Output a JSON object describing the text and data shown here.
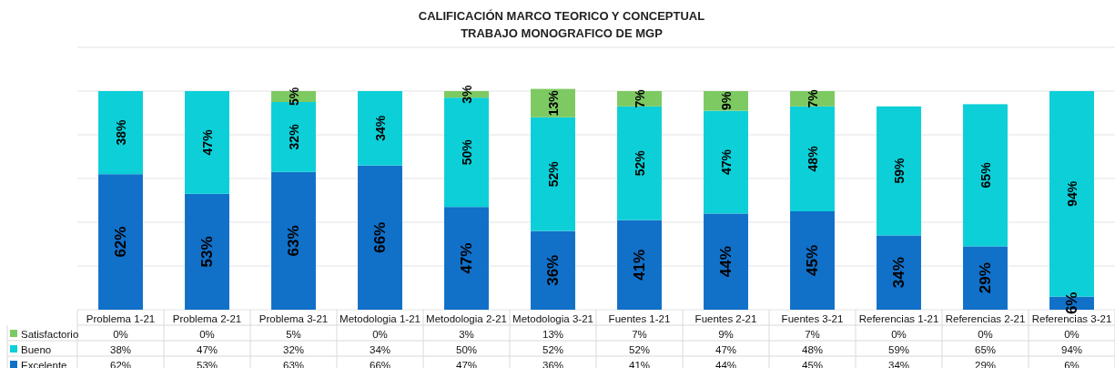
{
  "chart_data": {
    "type": "bar",
    "title": "CALIFICACIÓN MARCO TEORICO Y CONCEPTUAL\nTRABAJO MONOGRAFICO DE MGP",
    "categories": [
      "Problema 1-21",
      "Problema 2-21",
      "Problema 3-21",
      "Metodologia 1-21",
      "Metodologia 2-21",
      "Metodologia 3-21",
      "Fuentes 1-21",
      "Fuentes 2-21",
      "Fuentes 3-21",
      "Referencias 1-21",
      "Referencias 2-21",
      "Referencias 3-21"
    ],
    "stacked": true,
    "series": [
      {
        "name": "Excelente",
        "color": "#1170c8",
        "values": [
          62,
          53,
          63,
          66,
          47,
          36,
          41,
          44,
          45,
          34,
          29,
          6
        ],
        "value_labels": [
          "62%",
          "53%",
          "63%",
          "66%",
          "47%",
          "36%",
          "41%",
          "44%",
          "45%",
          "34%",
          "29%",
          "6%"
        ]
      },
      {
        "name": "Bueno",
        "color": "#0ccfd8",
        "values": [
          38,
          47,
          32,
          34,
          50,
          52,
          52,
          47,
          48,
          59,
          65,
          94
        ],
        "value_labels": [
          "38%",
          "47%",
          "32%",
          "34%",
          "50%",
          "52%",
          "52%",
          "47%",
          "48%",
          "59%",
          "65%",
          "94%"
        ]
      },
      {
        "name": "Satisfactorio",
        "color": "#7dc962",
        "values": [
          0,
          0,
          5,
          0,
          3,
          13,
          7,
          9,
          7,
          0,
          0,
          0
        ],
        "value_labels": [
          "0%",
          "0%",
          "5%",
          "0%",
          "3%",
          "13%",
          "7%",
          "9%",
          "7%",
          "0%",
          "0%",
          "0%"
        ]
      }
    ],
    "ylim": [
      0,
      120
    ],
    "yticks": [
      {
        "value": 0,
        "label": null
      },
      {
        "value": 20,
        "label": null
      },
      {
        "value": 40,
        "label": null
      },
      {
        "value": 60,
        "label": null
      },
      {
        "value": 80,
        "label": null
      },
      {
        "value": 100,
        "label": null
      },
      {
        "value": 120,
        "label": null
      }
    ],
    "grid": "y",
    "tick_labels": "x",
    "legend": "bottom left"
  }
}
